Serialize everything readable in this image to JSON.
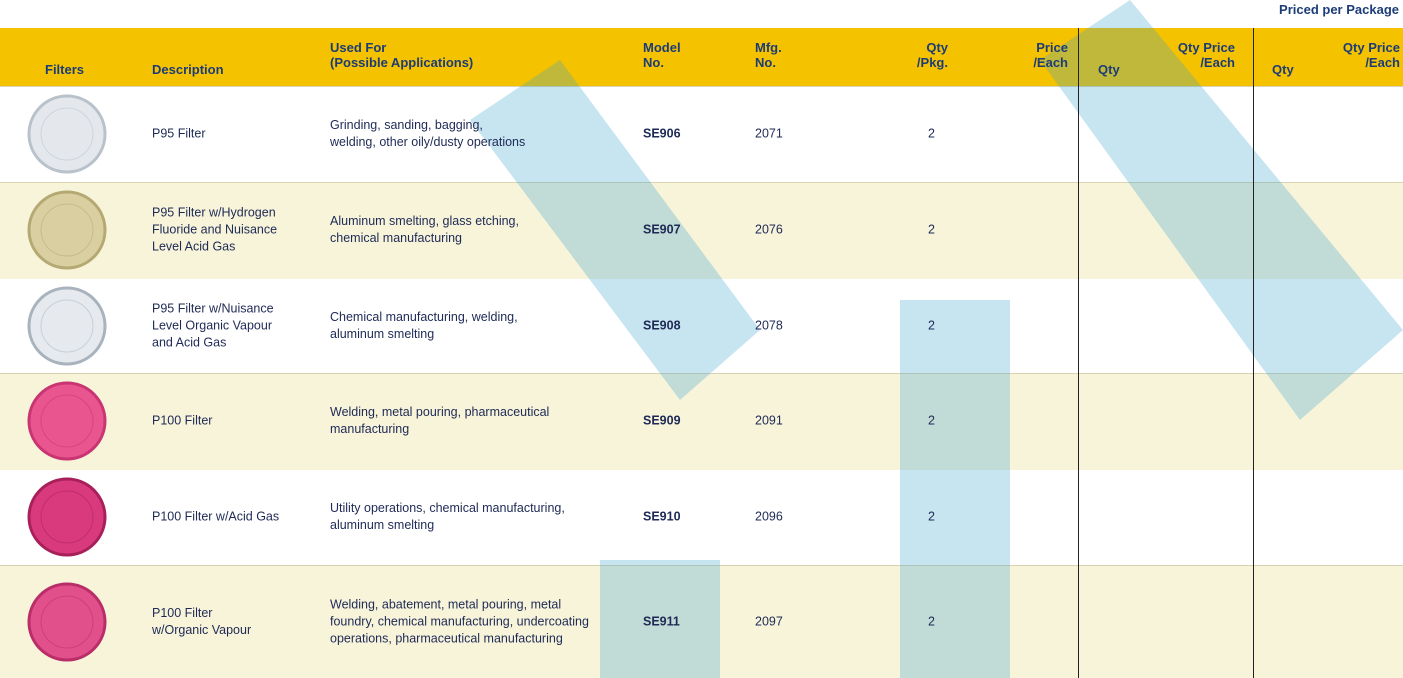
{
  "header": {
    "note": "Priced per Package",
    "columns": {
      "filters": "Filters",
      "description": "Description",
      "used_for": "Used For\n(Possible Applications)",
      "model_no": "Model\nNo.",
      "mfg_no": "Mfg.\nNo.",
      "qty_pkg": "Qty\n/Pkg.",
      "price_each": "Price\n/Each",
      "qty_1": "Qty",
      "qty_price_each_1": "Qty Price\n/Each",
      "qty_2": "Qty",
      "qty_price_each_2": "Qty Price\n/Each"
    }
  },
  "table": {
    "rows": [
      {
        "description": "P95 Filter",
        "used_for": "Grinding, sanding, bagging,\nwelding, other oily/dusty operations",
        "model": "SE906",
        "mfg": "2071",
        "qty_pkg": 2
      },
      {
        "description": "P95 Filter w/Hydrogen\nFluoride and Nuisance\nLevel Acid Gas",
        "used_for": "Aluminum smelting, glass etching,\nchemical manufacturing",
        "model": "SE907",
        "mfg": "2076",
        "qty_pkg": 2
      },
      {
        "description": "P95 Filter w/Nuisance\nLevel Organic Vapour\nand Acid Gas",
        "used_for": "Chemical manufacturing, welding,\naluminum smelting",
        "model": "SE908",
        "mfg": "2078",
        "qty_pkg": 2
      },
      {
        "description": "P100 Filter",
        "used_for": "Welding, metal pouring, pharmaceutical\nmanufacturing",
        "model": "SE909",
        "mfg": "2091",
        "qty_pkg": 2
      },
      {
        "description": "P100 Filter w/Acid Gas",
        "used_for": "Utility operations, chemical manufacturing,\naluminum smelting",
        "model": "SE910",
        "mfg": "2096",
        "qty_pkg": 2
      },
      {
        "description": "P100 Filter\nw/Organic Vapour",
        "used_for": "Welding, abatement, metal pouring, metal\nfoundry, chemical manufacturing, undercoating\noperations, pharmaceutical manufacturing",
        "model": "SE911",
        "mfg": "2097",
        "qty_pkg": 2
      }
    ]
  }
}
